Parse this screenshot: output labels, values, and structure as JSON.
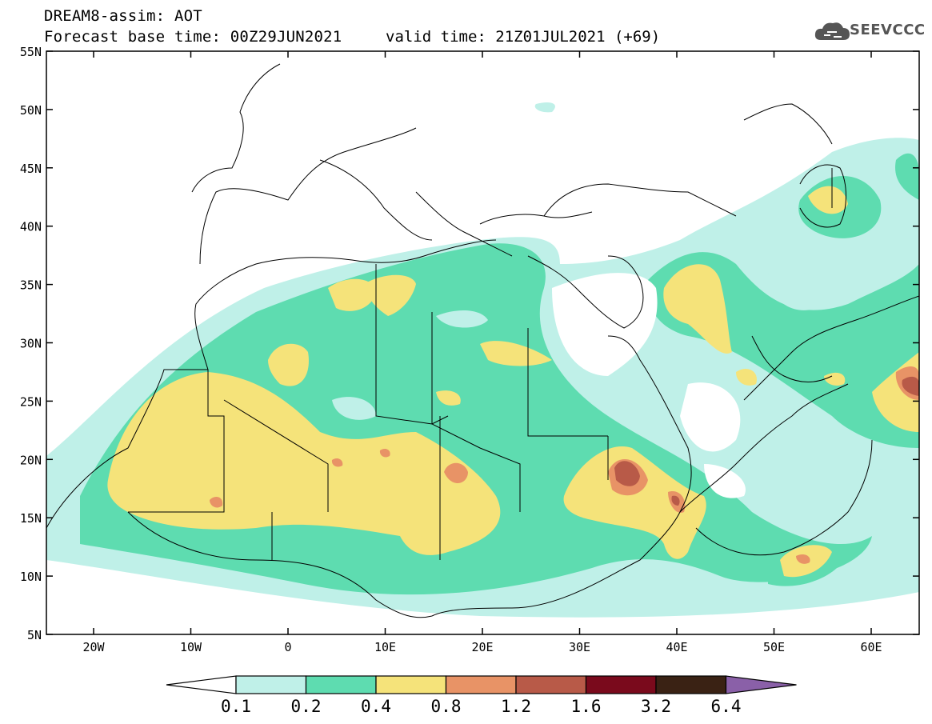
{
  "header": {
    "line1": "DREAM8-assim: AOT",
    "base_time": "Forecast base time: 00Z29JUN2021",
    "valid_time": "valid time: 21Z01JUL2021 (+69)"
  },
  "logo": {
    "text": "SEEVCCC",
    "icon": "cloud-icon"
  },
  "map": {
    "lat_labels": [
      "55N",
      "50N",
      "45N",
      "40N",
      "35N",
      "30N",
      "25N",
      "20N",
      "15N",
      "10N",
      "5N"
    ],
    "lon_labels": [
      "20W",
      "10W",
      "0",
      "10E",
      "20E",
      "30E",
      "40E",
      "50E",
      "60E"
    ]
  },
  "colorbar": {
    "labels": [
      "0.1",
      "0.2",
      "0.4",
      "0.8",
      "1.2",
      "1.6",
      "3.2",
      "6.4"
    ],
    "colors": [
      "#bff0e8",
      "#5edcb0",
      "#f5e37a",
      "#e89366",
      "#b85a48",
      "#7a0a1c",
      "#3a2214",
      "#8a60a8"
    ],
    "under_color": "#ffffff"
  }
}
